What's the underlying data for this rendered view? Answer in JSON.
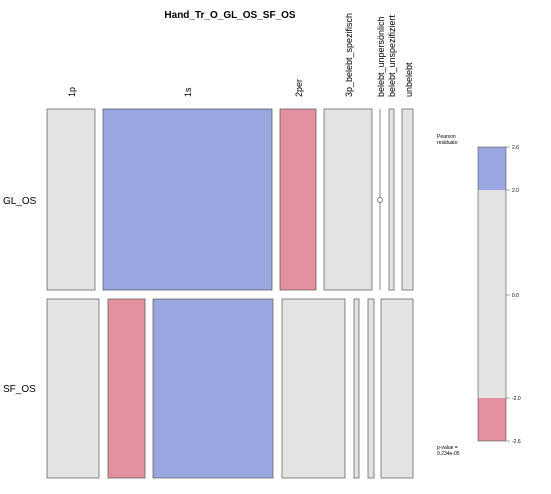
{
  "chart_data": {
    "type": "mosaic",
    "title": "Hand_Tr_O_GL_OS_SF_OS",
    "columns": [
      "1p",
      "1s",
      "2per",
      "3p_belebt_spezifisch",
      "belebt_unpersönlich",
      "belebt_unspezifiziert",
      "unbelebt"
    ],
    "rows": [
      "GL_OS",
      "SF_OS"
    ],
    "shading": {
      "GL_OS": [
        "neutral",
        "positive",
        "negative",
        "neutral",
        "neutral",
        "neutral",
        "neutral"
      ],
      "SF_OS": [
        "neutral",
        "negative",
        "positive",
        "neutral",
        "neutral",
        "neutral",
        "neutral"
      ]
    },
    "colors": {
      "positive": "#9aa6e0",
      "negative": "#e3909f",
      "neutral": "#e3e3e3"
    },
    "legend": {
      "title_line1": "Pearson",
      "title_line2": "residuals:",
      "ticks": [
        "2.6",
        "2.0",
        "0.0",
        "-2.0",
        "-2.6"
      ],
      "pvalue_line1": "p-value =",
      "pvalue_line2": "9.234e-05",
      "placement": "right"
    }
  }
}
